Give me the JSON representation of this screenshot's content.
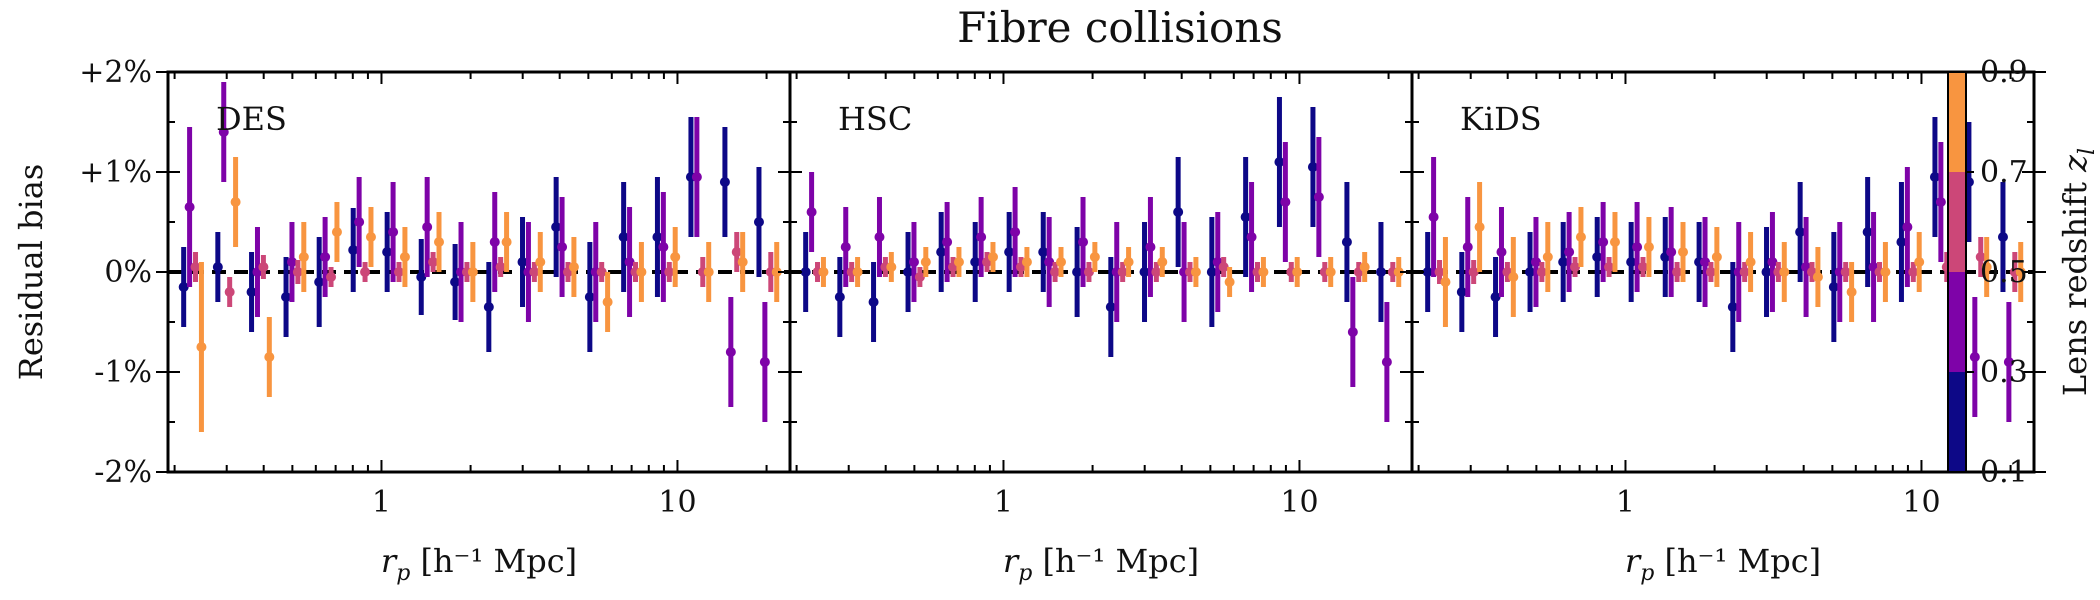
{
  "chart_data": {
    "type": "scatter",
    "title": "Fibre collisions",
    "ylabel": "Residual bias",
    "xlabel_base": "r",
    "xlabel_sub": "p",
    "xlabel_unit": "[h⁻¹ Mpc]",
    "x_scale": "log",
    "xlim": [
      0.19,
      24
    ],
    "ylim": [
      -2,
      2
    ],
    "y_ticks": [
      2,
      1,
      0,
      -1,
      -2
    ],
    "y_tick_labels": [
      "+2%",
      "+1%",
      "0%",
      "-1%",
      "-2%"
    ],
    "x_ticks": [
      1,
      10
    ],
    "x_tick_labels": [
      "1",
      "10"
    ],
    "reference_line": 0,
    "colorbar": {
      "label_base": "Lens redshift ",
      "label_var": "z",
      "label_sub": "l",
      "ticks": [
        "0.1",
        "0.3",
        "0.5",
        "0.7",
        "0.9"
      ],
      "bins": [
        {
          "range": [
            0.1,
            0.3
          ],
          "color": "#0d0887"
        },
        {
          "range": [
            0.3,
            0.5
          ],
          "color": "#7e03a8"
        },
        {
          "range": [
            0.5,
            0.7
          ],
          "color": "#cc4778"
        },
        {
          "range": [
            0.7,
            0.9
          ],
          "color": "#f89540"
        }
      ]
    },
    "x_bins": [
      0.23,
      0.3,
      0.39,
      0.51,
      0.66,
      0.86,
      1.12,
      1.46,
      1.9,
      2.47,
      3.21,
      4.17,
      5.42,
      7.05,
      9.17,
      11.9,
      15.5,
      20.2
    ],
    "series_offsets_dex": [
      -0.03,
      -0.01,
      0.01,
      0.03
    ],
    "panels": [
      {
        "name": "DES",
        "series": [
          {
            "zbin": "0.1-0.3",
            "y": [
              -0.15,
              0.05,
              -0.2,
              -0.25,
              -0.1,
              0.22,
              0.2,
              -0.05,
              -0.1,
              -0.35,
              0.1,
              0.45,
              -0.25,
              0.35,
              0.35,
              0.95,
              0.9,
              0.5
            ],
            "err": [
              0.4,
              0.35,
              0.4,
              0.4,
              0.45,
              0.42,
              0.4,
              0.38,
              0.38,
              0.45,
              0.45,
              0.5,
              0.55,
              0.55,
              0.6,
              0.6,
              0.55,
              0.55
            ]
          },
          {
            "zbin": "0.3-0.5",
            "y": [
              0.65,
              1.4,
              0.0,
              0.1,
              0.15,
              0.5,
              0.4,
              0.45,
              0.0,
              0.3,
              0.0,
              0.25,
              0.0,
              0.1,
              0.25,
              0.95,
              -0.8,
              -0.9
            ],
            "err": [
              0.8,
              0.5,
              0.45,
              0.4,
              0.4,
              0.45,
              0.5,
              0.5,
              0.5,
              0.5,
              0.5,
              0.5,
              0.5,
              0.55,
              0.55,
              0.6,
              0.55,
              0.6
            ]
          },
          {
            "zbin": "0.5-0.7",
            "y": [
              0.05,
              -0.2,
              0.05,
              0.0,
              -0.05,
              0.0,
              0.0,
              0.1,
              0.0,
              0.05,
              0.0,
              0.0,
              0.0,
              0.0,
              0.0,
              0.0,
              0.2,
              0.0
            ],
            "err": [
              0.15,
              0.15,
              0.12,
              0.12,
              0.1,
              0.1,
              0.1,
              0.1,
              0.1,
              0.1,
              0.1,
              0.1,
              0.1,
              0.1,
              0.1,
              0.15,
              0.2,
              0.2
            ]
          },
          {
            "zbin": "0.7-0.9",
            "y": [
              -0.75,
              0.7,
              -0.85,
              0.15,
              0.4,
              0.35,
              0.15,
              0.3,
              0.0,
              0.3,
              0.1,
              0.05,
              -0.3,
              0.0,
              0.15,
              0.0,
              0.1,
              0.0
            ],
            "err": [
              0.85,
              0.45,
              0.4,
              0.35,
              0.3,
              0.3,
              0.3,
              0.3,
              0.3,
              0.3,
              0.3,
              0.3,
              0.3,
              0.3,
              0.3,
              0.3,
              0.3,
              0.3
            ]
          }
        ]
      },
      {
        "name": "HSC",
        "series": [
          {
            "zbin": "0.1-0.3",
            "y": [
              0.0,
              -0.25,
              -0.3,
              0.0,
              0.2,
              0.1,
              0.2,
              0.2,
              0.0,
              -0.35,
              0.0,
              0.6,
              0.0,
              0.55,
              1.1,
              1.05,
              0.3,
              0.0
            ],
            "err": [
              0.4,
              0.4,
              0.4,
              0.4,
              0.4,
              0.4,
              0.4,
              0.4,
              0.45,
              0.5,
              0.5,
              0.55,
              0.55,
              0.6,
              0.65,
              0.6,
              0.6,
              0.5
            ]
          },
          {
            "zbin": "0.3-0.5",
            "y": [
              0.6,
              0.25,
              0.35,
              0.1,
              0.3,
              0.35,
              0.4,
              0.1,
              0.3,
              0.0,
              0.25,
              0.0,
              0.1,
              0.35,
              0.7,
              0.75,
              -0.6,
              -0.9
            ],
            "err": [
              0.4,
              0.4,
              0.4,
              0.4,
              0.4,
              0.4,
              0.45,
              0.45,
              0.45,
              0.5,
              0.5,
              0.5,
              0.5,
              0.55,
              0.6,
              0.6,
              0.55,
              0.6
            ]
          },
          {
            "zbin": "0.5-0.7",
            "y": [
              0.0,
              0.0,
              0.05,
              -0.05,
              0.05,
              0.1,
              0.05,
              0.0,
              0.0,
              0.0,
              0.0,
              0.0,
              0.05,
              0.0,
              0.0,
              0.0,
              0.0,
              0.0
            ],
            "err": [
              0.1,
              0.1,
              0.1,
              0.1,
              0.1,
              0.1,
              0.1,
              0.1,
              0.1,
              0.1,
              0.1,
              0.1,
              0.1,
              0.1,
              0.1,
              0.1,
              0.1,
              0.1
            ]
          },
          {
            "zbin": "0.7-0.9",
            "y": [
              0.0,
              0.0,
              0.05,
              0.1,
              0.1,
              0.15,
              0.1,
              0.1,
              0.15,
              0.1,
              0.1,
              0.0,
              -0.1,
              0.0,
              0.0,
              0.0,
              0.05,
              0.0
            ],
            "err": [
              0.15,
              0.15,
              0.15,
              0.15,
              0.15,
              0.15,
              0.15,
              0.15,
              0.15,
              0.15,
              0.15,
              0.15,
              0.15,
              0.15,
              0.15,
              0.15,
              0.15,
              0.15
            ]
          }
        ]
      },
      {
        "name": "KiDS",
        "series": [
          {
            "zbin": "0.1-0.3",
            "y": [
              0.0,
              -0.2,
              -0.25,
              0.0,
              0.1,
              0.15,
              0.1,
              0.15,
              0.1,
              -0.35,
              0.0,
              0.4,
              -0.15,
              0.4,
              0.3,
              0.95,
              0.9,
              0.35
            ],
            "err": [
              0.4,
              0.4,
              0.4,
              0.4,
              0.4,
              0.4,
              0.4,
              0.4,
              0.4,
              0.45,
              0.45,
              0.5,
              0.55,
              0.55,
              0.6,
              0.6,
              0.6,
              0.55
            ]
          },
          {
            "zbin": "0.3-0.5",
            "y": [
              0.55,
              0.25,
              0.2,
              0.1,
              0.2,
              0.3,
              0.25,
              0.2,
              0.1,
              0.0,
              0.1,
              0.05,
              0.0,
              0.05,
              0.45,
              0.7,
              -0.85,
              -0.9
            ],
            "err": [
              0.6,
              0.5,
              0.45,
              0.45,
              0.4,
              0.4,
              0.45,
              0.45,
              0.45,
              0.5,
              0.5,
              0.5,
              0.5,
              0.55,
              0.6,
              0.6,
              0.6,
              0.6
            ]
          },
          {
            "zbin": "0.5-0.7",
            "y": [
              0.0,
              0.0,
              0.0,
              0.0,
              0.05,
              0.05,
              0.05,
              0.0,
              0.0,
              0.0,
              0.0,
              0.0,
              0.0,
              0.0,
              0.0,
              0.05,
              0.15,
              0.0
            ],
            "err": [
              0.12,
              0.12,
              0.1,
              0.1,
              0.1,
              0.1,
              0.1,
              0.1,
              0.1,
              0.1,
              0.1,
              0.1,
              0.1,
              0.1,
              0.1,
              0.15,
              0.2,
              0.2
            ]
          },
          {
            "zbin": "0.7-0.9",
            "y": [
              -0.1,
              0.45,
              -0.05,
              0.15,
              0.35,
              0.3,
              0.25,
              0.2,
              0.15,
              0.1,
              0.0,
              -0.05,
              -0.2,
              0.0,
              0.1,
              0.15,
              0.05,
              0.0
            ],
            "err": [
              0.45,
              0.45,
              0.4,
              0.35,
              0.3,
              0.3,
              0.3,
              0.3,
              0.3,
              0.3,
              0.3,
              0.3,
              0.3,
              0.3,
              0.3,
              0.3,
              0.3,
              0.3
            ]
          }
        ]
      }
    ]
  }
}
